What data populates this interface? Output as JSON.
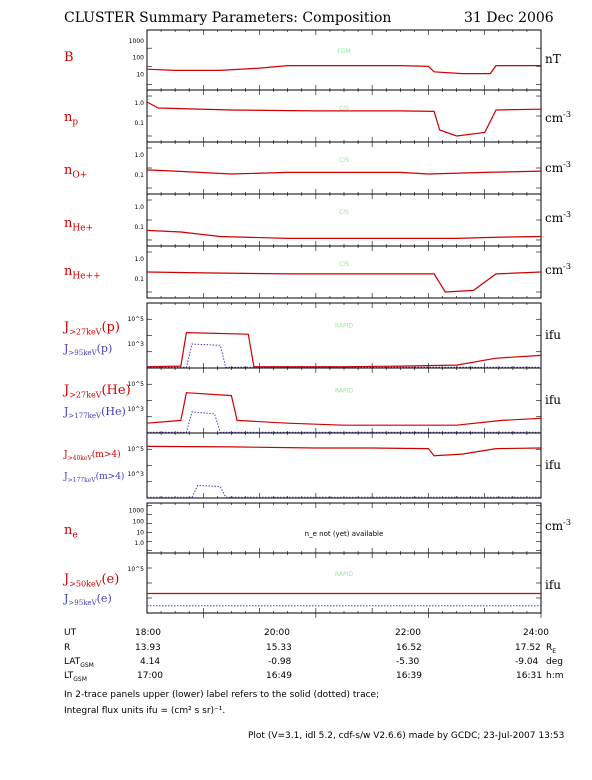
{
  "header": {
    "title": "CLUSTER Summary Parameters:  Composition",
    "date": "31 Dec 2006"
  },
  "colors": {
    "primary": "#d00000",
    "secondary": "#4040c0",
    "watermark": "#99e699"
  },
  "chart_data": {
    "type": "line",
    "x_range_hours": [
      17.0,
      24.0
    ],
    "x_ticks": [
      "18:00",
      "20:00",
      "22:00",
      "24:00"
    ],
    "panels": [
      {
        "id": "B",
        "label": "B",
        "unit": "nT",
        "watermark": "FGM",
        "log": true,
        "ylim": [
          0.5,
          1000
        ],
        "tick_labels": [
          "1000",
          "100",
          "10"
        ],
        "series": [
          {
            "name": "solid",
            "points": [
              [
                17.0,
                7
              ],
              [
                17.5,
                6
              ],
              [
                18.3,
                6
              ],
              [
                19.0,
                8
              ],
              [
                19.5,
                11
              ],
              [
                20.5,
                11
              ],
              [
                21.5,
                11
              ],
              [
                22.0,
                10
              ],
              [
                22.1,
                5
              ],
              [
                22.6,
                4
              ],
              [
                23.1,
                4
              ],
              [
                23.2,
                11
              ],
              [
                24.0,
                11
              ]
            ]
          }
        ]
      },
      {
        "id": "np",
        "label": "n_p",
        "unit": "cm^-3",
        "watermark": "CIS",
        "log": true,
        "ylim": [
          0.005,
          2
        ],
        "tick_labels": [
          "1.0",
          "0.1"
        ],
        "series": [
          {
            "name": "solid",
            "points": [
              [
                17.0,
                0.5
              ],
              [
                17.2,
                0.25
              ],
              [
                18.5,
                0.2
              ],
              [
                20.0,
                0.18
              ],
              [
                21.5,
                0.18
              ],
              [
                22.1,
                0.17
              ],
              [
                22.2,
                0.02
              ],
              [
                22.5,
                0.01
              ],
              [
                23.0,
                0.015
              ],
              [
                23.2,
                0.2
              ],
              [
                24.0,
                0.22
              ]
            ]
          }
        ]
      },
      {
        "id": "nOp",
        "label": "n_O+",
        "unit": "cm^-3",
        "watermark": "CIS",
        "log": true,
        "ylim": [
          0.005,
          2
        ],
        "tick_labels": [
          "1.0",
          "0.1"
        ],
        "series": [
          {
            "name": "solid",
            "points": [
              [
                17.0,
                0.08
              ],
              [
                17.5,
                0.07
              ],
              [
                18.5,
                0.05
              ],
              [
                19.5,
                0.06
              ],
              [
                20.5,
                0.06
              ],
              [
                21.5,
                0.06
              ],
              [
                22.0,
                0.05
              ],
              [
                23.0,
                0.06
              ],
              [
                24.0,
                0.07
              ]
            ]
          }
        ]
      },
      {
        "id": "nHep",
        "label": "n_He+",
        "unit": "cm^-3",
        "watermark": "CIS",
        "log": true,
        "ylim": [
          0.005,
          2
        ],
        "tick_labels": [
          "1.0",
          "0.1"
        ],
        "series": [
          {
            "name": "solid",
            "points": [
              [
                17.0,
                0.03
              ],
              [
                17.6,
                0.025
              ],
              [
                18.3,
                0.015
              ],
              [
                19.5,
                0.012
              ],
              [
                20.5,
                0.012
              ],
              [
                21.5,
                0.012
              ],
              [
                22.5,
                0.012
              ],
              [
                23.3,
                0.014
              ],
              [
                24.0,
                0.015
              ]
            ]
          }
        ]
      },
      {
        "id": "nHepp",
        "label": "n_He++",
        "unit": "cm^-3",
        "watermark": "CIS",
        "log": true,
        "ylim": [
          0.005,
          2
        ],
        "tick_labels": [
          "1.0",
          "0.1"
        ],
        "series": [
          {
            "name": "solid",
            "points": [
              [
                17.0,
                0.1
              ],
              [
                18.0,
                0.09
              ],
              [
                19.5,
                0.08
              ],
              [
                20.5,
                0.08
              ],
              [
                21.5,
                0.08
              ],
              [
                22.1,
                0.08
              ],
              [
                22.3,
                0.01
              ],
              [
                22.8,
                0.012
              ],
              [
                23.2,
                0.08
              ],
              [
                24.0,
                0.1
              ]
            ]
          }
        ]
      },
      {
        "id": "Jp",
        "label": "J_>27keV(p)",
        "label2": "J_>95keV(p)",
        "unit": "ifu",
        "watermark": "RAPID",
        "log": true,
        "ylim": [
          10,
          100000
        ],
        "tick_labels": [
          "10^5",
          "10^3"
        ],
        "series": [
          {
            "name": "solid",
            "points": [
              [
                17.0,
                12
              ],
              [
                17.6,
                13
              ],
              [
                17.7,
                1500
              ],
              [
                18.8,
                1200
              ],
              [
                18.9,
                12
              ],
              [
                20.5,
                12
              ],
              [
                21.5,
                13
              ],
              [
                22.5,
                15
              ],
              [
                23.2,
                40
              ],
              [
                24.0,
                60
              ]
            ]
          },
          {
            "name": "dotted",
            "points": [
              [
                17.0,
                11
              ],
              [
                17.7,
                11
              ],
              [
                17.8,
                300
              ],
              [
                18.3,
                250
              ],
              [
                18.4,
                11
              ],
              [
                24.0,
                11
              ]
            ]
          }
        ]
      },
      {
        "id": "JHe",
        "label": "J_>27keV(He)",
        "label2": "J_>177keV(He)",
        "unit": "ifu",
        "watermark": "RAPID",
        "log": true,
        "ylim": [
          10,
          100000
        ],
        "tick_labels": [
          "10^5",
          "10^3"
        ],
        "series": [
          {
            "name": "solid",
            "points": [
              [
                17.0,
                40
              ],
              [
                17.6,
                60
              ],
              [
                17.7,
                3000
              ],
              [
                18.5,
                2000
              ],
              [
                18.6,
                60
              ],
              [
                19.5,
                40
              ],
              [
                20.5,
                30
              ],
              [
                21.5,
                30
              ],
              [
                22.5,
                30
              ],
              [
                23.3,
                60
              ],
              [
                24.0,
                80
              ]
            ]
          },
          {
            "name": "dotted",
            "points": [
              [
                17.0,
                11
              ],
              [
                17.7,
                11
              ],
              [
                17.8,
                200
              ],
              [
                18.2,
                150
              ],
              [
                18.3,
                11
              ],
              [
                24.0,
                11
              ]
            ]
          }
        ]
      },
      {
        "id": "Jm4",
        "label": "J_>40keV(m>4)",
        "label2": "J_>177keV(m>4)",
        "unit": "ifu",
        "watermark": "",
        "log": true,
        "ylim": [
          10,
          100000
        ],
        "tick_labels": [
          "10^5",
          "10^3"
        ],
        "series": [
          {
            "name": "solid",
            "points": [
              [
                17.0,
                15000
              ],
              [
                18.5,
                14000
              ],
              [
                20.0,
                12000
              ],
              [
                21.0,
                12000
              ],
              [
                22.0,
                11000
              ],
              [
                22.1,
                4000
              ],
              [
                22.6,
                5000
              ],
              [
                23.2,
                11000
              ],
              [
                24.0,
                12000
              ]
            ]
          },
          {
            "name": "dotted",
            "points": [
              [
                17.0,
                11
              ],
              [
                17.8,
                11
              ],
              [
                17.9,
                60
              ],
              [
                18.3,
                50
              ],
              [
                18.4,
                11
              ],
              [
                24.0,
                11
              ]
            ]
          }
        ]
      },
      {
        "id": "ne",
        "label": "n_e",
        "unit": "cm^-3",
        "watermark": "",
        "log": true,
        "ylim": [
          0.005,
          2000
        ],
        "tick_labels": [
          "1000",
          "100",
          "10",
          "1.0"
        ],
        "message": "n_e not (yet) available",
        "series": []
      },
      {
        "id": "Je",
        "label": "J_>50keV(e)",
        "label2": "J_>95keV(e)",
        "unit": "ifu",
        "watermark": "RAPID",
        "log": true,
        "ylim": [
          10,
          100000
        ],
        "tick_labels": [
          "10^5"
        ],
        "series": [
          {
            "name": "solid",
            "points": [
              [
                17.0,
                200
              ],
              [
                24.0,
                200
              ]
            ]
          },
          {
            "name": "dotted",
            "points": [
              [
                17.0,
                30
              ],
              [
                24.0,
                30
              ]
            ]
          }
        ]
      }
    ]
  },
  "ephemeris": {
    "rows": [
      {
        "label": "UT",
        "values": [
          "18:00",
          "20:00",
          "22:00",
          "24:00"
        ],
        "unit": ""
      },
      {
        "label": "R",
        "values": [
          "13.93",
          "15.33",
          "16.52",
          "17.52"
        ],
        "unit": "R_E"
      },
      {
        "label": "LAT_GSM",
        "values": [
          "4.14",
          "-0.98",
          "-5.30",
          "-9.04"
        ],
        "unit": "deg"
      },
      {
        "label": "LT_GSM",
        "values": [
          "17:00",
          "16:49",
          "16:39",
          "16:31"
        ],
        "unit": "h:m"
      }
    ]
  },
  "notes": {
    "line1": "In 2-trace panels upper (lower) label refers to the solid (dotted) trace;",
    "line2": "Integral flux units ifu = (cm² s sr)⁻¹.",
    "footer": "Plot (V=3.1, idl 5.2, cdf-s/w V2.6.6) made by GCDC;  23-Jul-2007 13:53"
  }
}
